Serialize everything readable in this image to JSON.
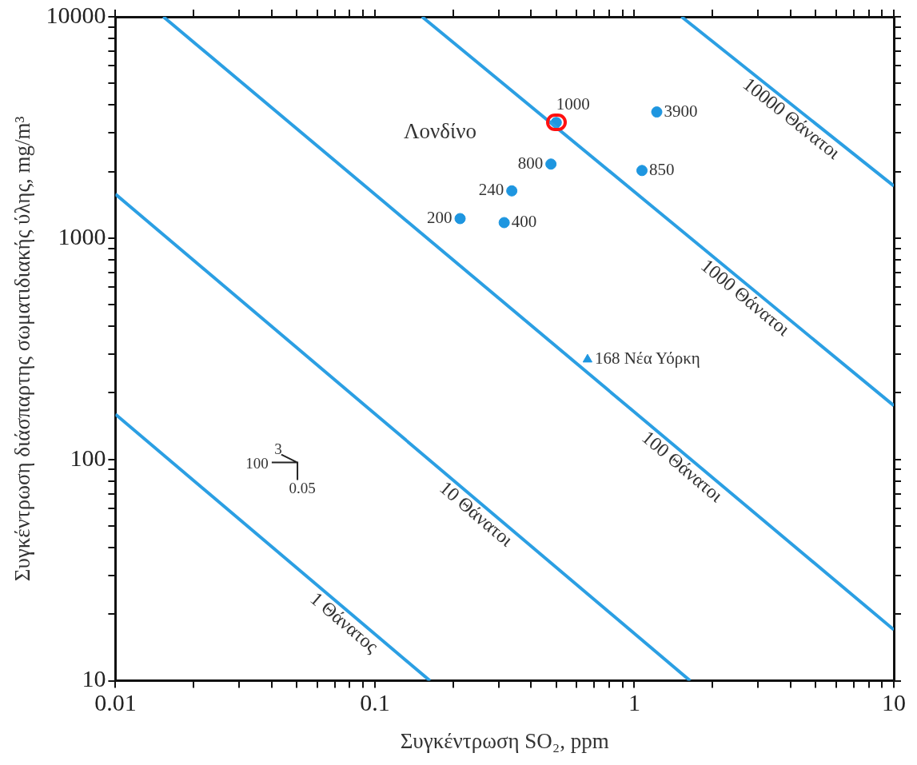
{
  "chart_data": {
    "type": "line",
    "xlabel": "Συγκέντρωση SO₂, ppm",
    "ylabel": "Συγκέντρωση διάσπαρτης σωματιδιακής ύλης, mg/m³",
    "log": "xy",
    "legend": false,
    "xlim": [
      0.01,
      10
    ],
    "ylim": [
      10,
      10000
    ],
    "xticks": [
      0.01,
      {
        "value": 0.02,
        "label": null
      },
      {
        "value": 0.03,
        "label": null
      },
      {
        "value": 0.04,
        "label": null
      },
      {
        "value": 0.05,
        "label": null
      },
      {
        "value": 0.06,
        "label": null
      },
      {
        "value": 0.07,
        "label": null
      },
      {
        "value": 0.08,
        "label": null
      },
      {
        "value": 0.09,
        "label": null
      },
      0.1,
      {
        "value": 0.2,
        "label": null
      },
      {
        "value": 0.3,
        "label": null
      },
      {
        "value": 0.4,
        "label": null
      },
      {
        "value": 0.5,
        "label": null
      },
      {
        "value": 0.6,
        "label": null
      },
      {
        "value": 0.7,
        "label": null
      },
      {
        "value": 0.8,
        "label": null
      },
      {
        "value": 0.9,
        "label": null
      },
      1,
      {
        "value": 2,
        "label": null
      },
      {
        "value": 3,
        "label": null
      },
      {
        "value": 4,
        "label": null
      },
      {
        "value": 5,
        "label": null
      },
      {
        "value": 6,
        "label": null
      },
      {
        "value": 7,
        "label": null
      },
      {
        "value": 8,
        "label": null
      },
      {
        "value": 9,
        "label": null
      },
      10
    ],
    "yticks": [
      10,
      {
        "value": 20,
        "label": null
      },
      {
        "value": 30,
        "label": null
      },
      {
        "value": 40,
        "label": null
      },
      {
        "value": 50,
        "label": null
      },
      {
        "value": 60,
        "label": null
      },
      {
        "value": 70,
        "label": null
      },
      {
        "value": 80,
        "label": null
      },
      {
        "value": 90,
        "label": null
      },
      100,
      {
        "value": 200,
        "label": null
      },
      {
        "value": 300,
        "label": null
      },
      {
        "value": 400,
        "label": null
      },
      {
        "value": 500,
        "label": null
      },
      {
        "value": 600,
        "label": null
      },
      {
        "value": 700,
        "label": null
      },
      {
        "value": 800,
        "label": null
      },
      {
        "value": 900,
        "label": null
      },
      1000,
      {
        "value": 2000,
        "label": null
      },
      {
        "value": 3000,
        "label": null
      },
      {
        "value": 4000,
        "label": null
      },
      {
        "value": 5000,
        "label": null
      },
      {
        "value": 6000,
        "label": null
      },
      {
        "value": 7000,
        "label": null
      },
      {
        "value": 8000,
        "label": null
      },
      {
        "value": 9000,
        "label": null
      },
      10000
    ],
    "series": [
      {
        "name": "1 Θάνατος",
        "color": "#2b9fe3",
        "x": [
          0.01,
          0.163
        ],
        "values": [
          160,
          10
        ]
      },
      {
        "name": "10 Θάνατοι",
        "color": "#2b9fe3",
        "x": [
          0.01,
          1.64
        ],
        "values": [
          1580,
          10
        ]
      },
      {
        "name": "100 Θάνατοι",
        "color": "#2b9fe3",
        "x": [
          0.0153,
          10
        ],
        "values": [
          10000,
          17
        ]
      },
      {
        "name": "1000 Θάνατοι",
        "color": "#2b9fe3",
        "x": [
          0.152,
          10
        ],
        "values": [
          10000,
          175
        ]
      },
      {
        "name": "10000 Θάνατοι",
        "color": "#2b9fe3",
        "x": [
          1.52,
          10
        ],
        "values": [
          10000,
          1720
        ]
      },
      {
        "type": "scatter",
        "marker": "circle",
        "color": "#1e96e0",
        "x": [
          0.5,
          1.22,
          0.477,
          1.07,
          0.337,
          0.213,
          0.315
        ],
        "values": [
          3330,
          3715,
          2160,
          2020,
          1635,
          1225,
          1175
        ]
      },
      {
        "type": "scatter",
        "marker": "triangle",
        "color": "#1e96e0",
        "x": [
          0.66
        ],
        "values": [
          283
        ]
      }
    ],
    "annotations": [
      "Λονδίνο",
      "100",
      "3",
      "0.05",
      {
        "text": "1000",
        "x": 0.5,
        "y": 3330
      },
      {
        "text": "3900",
        "x": 1.22,
        "y": 3715
      },
      {
        "text": "800",
        "x": 0.477,
        "y": 2160
      },
      {
        "text": "850",
        "x": 1.07,
        "y": 2020
      },
      {
        "text": "240",
        "x": 0.337,
        "y": 1635
      },
      {
        "text": "200",
        "x": 0.213,
        "y": 1225
      },
      {
        "text": "400",
        "x": 0.315,
        "y": 1175
      },
      {
        "text": "168 Νέα Υόρκη",
        "x": 0.66,
        "y": 283
      }
    ]
  }
}
